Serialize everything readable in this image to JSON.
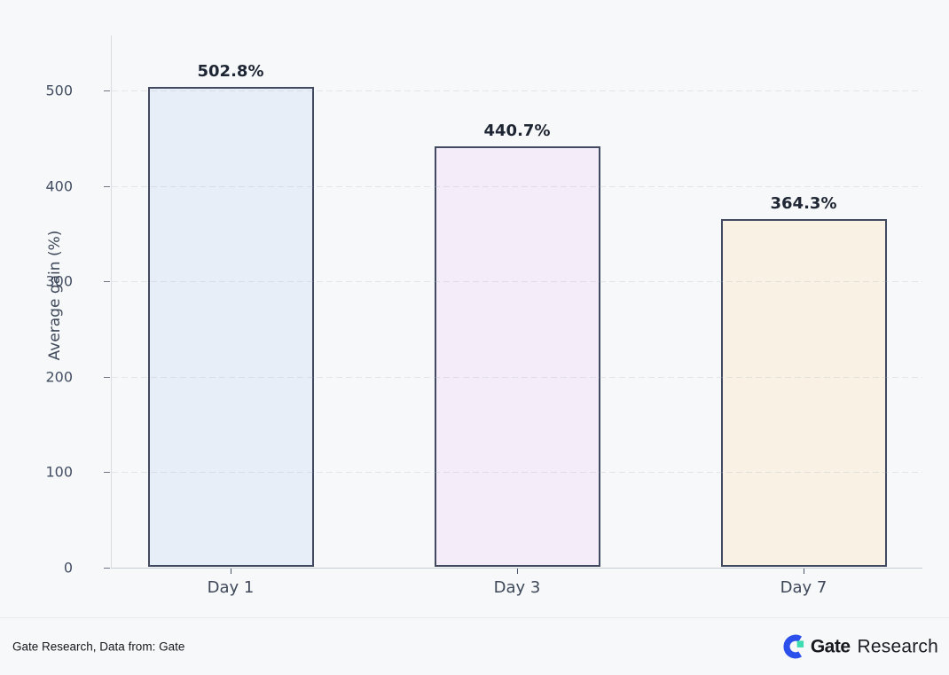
{
  "chart_data": {
    "type": "bar",
    "categories": [
      "Day 1",
      "Day 3",
      "Day 7"
    ],
    "values": [
      502.8,
      440.7,
      364.3
    ],
    "value_labels": [
      "502.8%",
      "440.7%",
      "364.3%"
    ],
    "bar_fill_colors": [
      "#e7eef8",
      "#f4edf9",
      "#f8f1e4"
    ],
    "bar_border_color": "#414a60",
    "title": "",
    "xlabel": "",
    "ylabel": "Average gain (%)",
    "yticks": [
      0,
      100,
      200,
      300,
      400,
      500
    ],
    "ylim": [
      0,
      558
    ],
    "grid": "horizontal-dashed",
    "legend": "none",
    "background_color": "#f7f8fa"
  },
  "footer": {
    "source_text": "Gate Research, Data from: Gate",
    "logo": {
      "icon": "gate-logo-icon",
      "brand_bold": "Gate",
      "brand_regular": "Research",
      "icon_blue": "#2b50ec",
      "icon_green": "#3fdcb2"
    }
  }
}
